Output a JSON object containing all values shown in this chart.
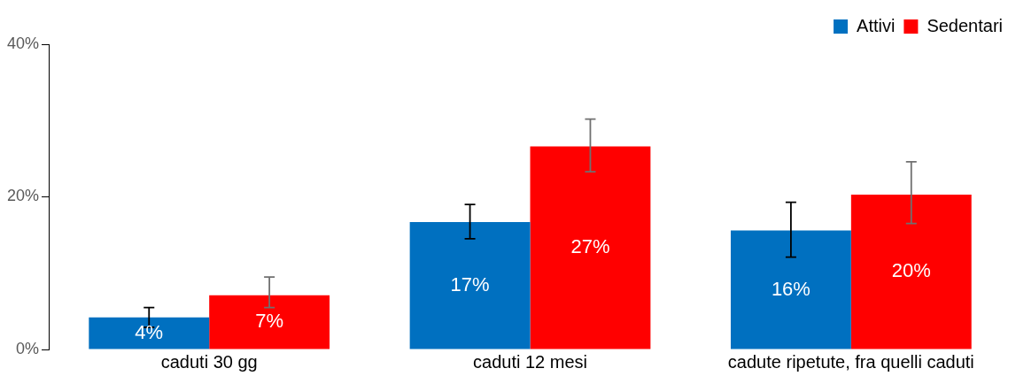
{
  "chart_data": {
    "type": "bar",
    "categories": [
      "caduti 30 gg",
      "caduti 12 mesi",
      "cadute ripetute, fra quelli caduti"
    ],
    "series": [
      {
        "name": "Attivi",
        "color": "#0070c0",
        "values": [
          4.2,
          16.7,
          15.6
        ],
        "errors": [
          [
            2.9,
            5.5
          ],
          [
            14.5,
            19.0
          ],
          [
            12.1,
            19.3
          ]
        ],
        "value_labels": [
          "4%",
          "17%",
          "16%"
        ]
      },
      {
        "name": "Sedentari",
        "color": "#ff0000",
        "values": [
          7.1,
          26.6,
          20.3
        ],
        "errors": [
          [
            5.5,
            9.5
          ],
          [
            23.3,
            30.2
          ],
          [
            16.5,
            24.6
          ]
        ],
        "value_labels": [
          "7%",
          "27%",
          "20%"
        ]
      }
    ],
    "ylim": [
      0,
      40
    ],
    "yticks": [
      {
        "value": 0,
        "label": "0%"
      },
      {
        "value": 20,
        "label": "20%"
      },
      {
        "value": 40,
        "label": "40%"
      }
    ],
    "grid": false,
    "legend": "top right"
  }
}
